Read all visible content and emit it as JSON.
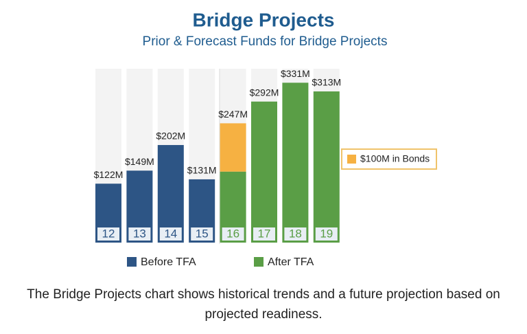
{
  "chart_data": {
    "type": "stacked-bar",
    "title": "Bridge Projects",
    "subtitle": "Prior & Forecast Funds for Bridge Projects",
    "categories": [
      "12",
      "13",
      "14",
      "15",
      "16",
      "17",
      "18",
      "19"
    ],
    "series": [
      {
        "name": "Before TFA",
        "color": "#2d5585",
        "values": [
          122,
          149,
          202,
          131,
          null,
          null,
          null,
          null
        ]
      },
      {
        "name": "After TFA",
        "color": "#5a9e46",
        "values": [
          null,
          null,
          null,
          null,
          147,
          292,
          331,
          313
        ]
      },
      {
        "name": "$100M in Bonds",
        "color": "#f6b142",
        "values": [
          null,
          null,
          null,
          null,
          100,
          null,
          null,
          null
        ]
      }
    ],
    "totals": {
      "values": [
        122,
        149,
        202,
        131,
        247,
        292,
        331,
        313
      ],
      "value_labels": [
        "$122M",
        "$149M",
        "$202M",
        "$131M",
        "$247M",
        "$292M",
        "$331M",
        "$313M"
      ]
    },
    "ylim": [
      0,
      360
    ],
    "caption": "The Bridge Projects chart shows historical trends and a future projection based on projected readiness."
  }
}
